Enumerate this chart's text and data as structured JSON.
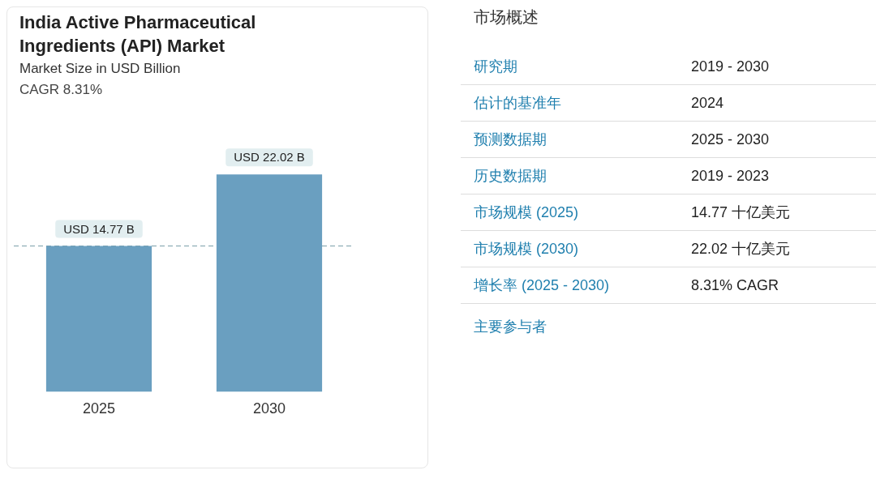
{
  "chart_data": [
    {
      "type": "bar",
      "title": "India Active Pharmaceutical Ingredients (API) Market",
      "subtitle": "Market Size in USD Billion",
      "annotations": [
        "CAGR 8.31%"
      ],
      "categories": [
        "2025",
        "2030"
      ],
      "values": [
        14.77,
        22.02
      ],
      "value_labels": [
        "USD 14.77 B",
        "USD 22.02 B"
      ],
      "color": "#6a9fc0",
      "tick_labels": "x",
      "ref_lines": [
        {
          "axis": "y",
          "value": 14.77,
          "line_style": "dashed",
          "color": "#7a9ea8"
        }
      ]
    },
    {
      "type": "other",
      "title": "市场概述",
      "annotations": [
        "研究期",
        "2019 - 2030",
        "估计的基准年",
        "2024",
        "预测数据期",
        "2025 - 2030",
        "历史数据期",
        "2019 - 2023",
        "市场规模 (2025)",
        "14.77 十亿美元",
        "市场规模 (2030)",
        "22.02 十亿美元",
        "增长率 (2025 - 2030)",
        "8.31% CAGR",
        "主要参与者"
      ]
    }
  ]
}
